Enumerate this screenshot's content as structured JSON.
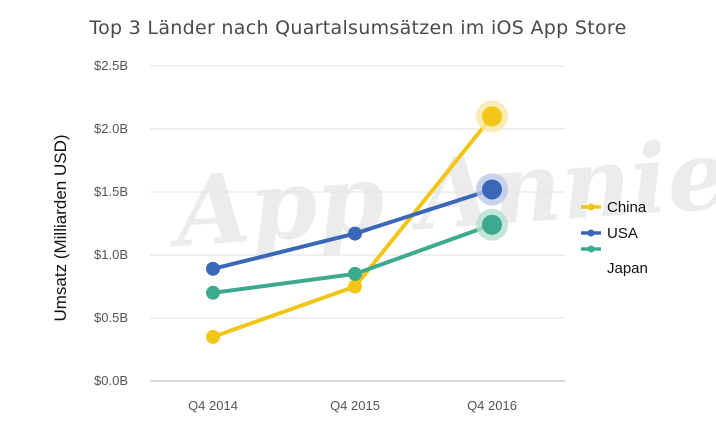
{
  "chart_data": {
    "type": "line",
    "title": "Top 3 Länder nach Quartalsumsätzen im iOS App Store",
    "xlabel": "",
    "ylabel": "Umsatz (Milliarden USD)",
    "categories": [
      "Q4 2014",
      "Q4 2015",
      "Q4 2016"
    ],
    "y_ticks": [
      {
        "value": 0.0,
        "label": "$0.0B"
      },
      {
        "value": 0.5,
        "label": "$0.5B"
      },
      {
        "value": 1.0,
        "label": "$1.0B"
      },
      {
        "value": 1.5,
        "label": "$1.5B"
      },
      {
        "value": 2.0,
        "label": "$2.0B"
      },
      {
        "value": 2.5,
        "label": "$2.5B"
      }
    ],
    "ylim": [
      0,
      2.5
    ],
    "grid": true,
    "legend_position": "right",
    "watermark": "App Annie",
    "series": [
      {
        "name": "China",
        "color": "#f2c617",
        "halo": "#f7e7a4",
        "values": [
          0.35,
          0.75,
          2.1
        ]
      },
      {
        "name": "USA",
        "color": "#3b67b8",
        "halo": "#b9c9e6",
        "values": [
          0.89,
          1.17,
          1.52
        ]
      },
      {
        "name": "Japan",
        "color": "#3caa8c",
        "halo": "#b5decf",
        "values": [
          0.7,
          0.85,
          1.24
        ]
      }
    ]
  }
}
